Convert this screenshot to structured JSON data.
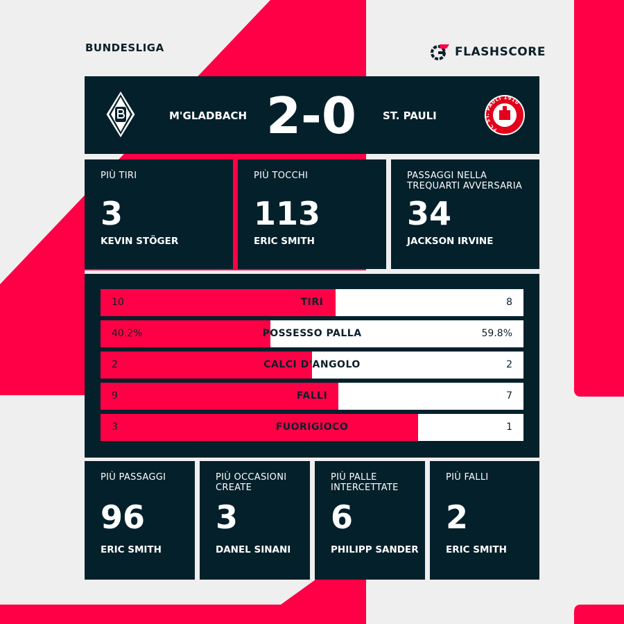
{
  "colors": {
    "accent": "#ff0046",
    "dark": "#04202b",
    "background": "#efefef"
  },
  "league": "BUNDESLIGA",
  "brand": "FLASHSCORE",
  "match": {
    "home": "M'GLADBACH",
    "away": "ST. PAULI",
    "score": "2-0",
    "home_logo_icon": "borussia-diamond-crest-icon",
    "away_logo_icon": "st-pauli-crest-icon",
    "away_logo_text": "FC ST. PAULI 1910"
  },
  "top_leaders": [
    {
      "label": "PIÙ TIRI",
      "value": "3",
      "player": "KEVIN STÖGER"
    },
    {
      "label": "PIÙ TOCCHI",
      "value": "113",
      "player": "ERIC SMITH"
    },
    {
      "label": "PASSAGGI NELLA TREQUARTI AVVERSARIA",
      "value": "34",
      "player": "JACKSON IRVINE"
    }
  ],
  "stats": [
    {
      "name": "TIRI",
      "home": "10",
      "away": "8",
      "home_share": 0.556
    },
    {
      "name": "POSSESSO PALLA",
      "home": "40.2%",
      "away": "59.8%",
      "home_share": 0.402
    },
    {
      "name": "CALCI D'ANGOLO",
      "home": "2",
      "away": "2",
      "home_share": 0.5
    },
    {
      "name": "FALLI",
      "home": "9",
      "away": "7",
      "home_share": 0.5625
    },
    {
      "name": "FUORIGIOCO",
      "home": "3",
      "away": "1",
      "home_share": 0.75
    }
  ],
  "bottom_leaders": [
    {
      "label": "PIÙ PASSAGGI",
      "value": "96",
      "player": "ERIC SMITH"
    },
    {
      "label": "PIÙ OCCASIONI CREATE",
      "value": "3",
      "player": "DANEL SINANI"
    },
    {
      "label": "PIÙ PALLE INTERCETTATE",
      "value": "6",
      "player": "PHILIPP SANDER"
    },
    {
      "label": "PIÙ FALLI",
      "value": "2",
      "player": "ERIC SMITH"
    }
  ]
}
